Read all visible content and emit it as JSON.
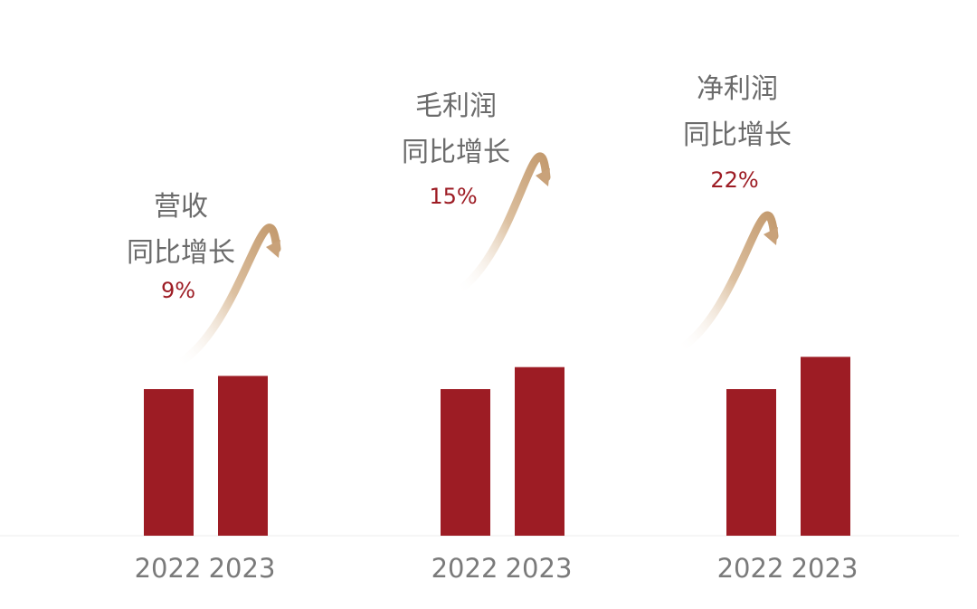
{
  "colors": {
    "bar": "#9d1c24",
    "title_text": "#6b6b6b",
    "value_text": "#9d1c24",
    "tick_text": "#7a7a7a",
    "arrow": "#c9a27a",
    "baseline": "#ededed"
  },
  "chart_data": [
    {
      "type": "bar",
      "categories": [
        "2022",
        "2023"
      ],
      "values": [
        1.0,
        1.09
      ],
      "title_lines": [
        "营收",
        "同比增长"
      ],
      "growth_label": "9%"
    },
    {
      "type": "bar",
      "categories": [
        "2022",
        "2023"
      ],
      "values": [
        1.0,
        1.15
      ],
      "title_lines": [
        "毛利润",
        "同比增长"
      ],
      "growth_label": "15%"
    },
    {
      "type": "bar",
      "categories": [
        "2022",
        "2023"
      ],
      "values": [
        1.0,
        1.22
      ],
      "title_lines": [
        "净利润",
        "同比增长"
      ],
      "growth_label": "22%"
    }
  ]
}
